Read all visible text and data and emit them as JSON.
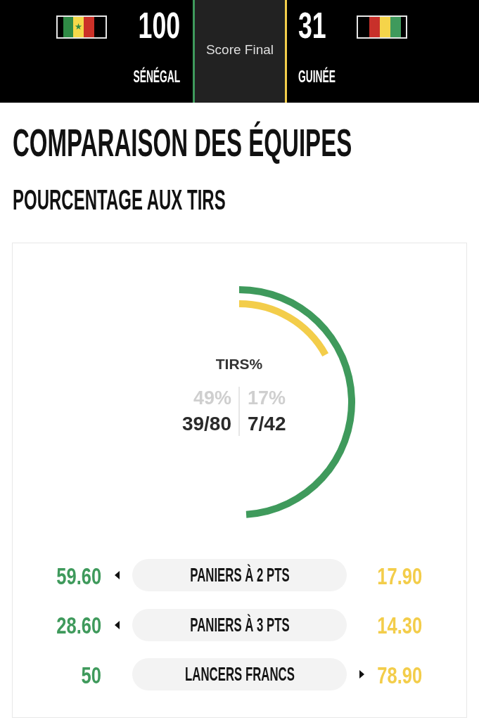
{
  "chart_data": [
    {
      "type": "other",
      "title": "Score Final",
      "categories": [
        "SÉNÉGAL",
        "GUINÉE"
      ],
      "values": [
        100,
        31
      ],
      "data_labels": true
    },
    {
      "type": "other",
      "title": "COMPARAISON DES ÉQUIPES",
      "subtitle": "POURCENTAGE AUX TIRS",
      "categories": [
        "TIRS%"
      ],
      "series": [
        {
          "color": "#3f9a5c",
          "values": [
            49
          ],
          "value_labels": [
            "49%"
          ]
        },
        {
          "color": "#f3cd4a",
          "values": [
            17
          ],
          "value_labels": [
            "17%"
          ]
        }
      ],
      "annotations": [
        "39/80",
        "7/42"
      ]
    },
    {
      "type": "other",
      "categories": [
        "PANIERS À 2 PTS",
        "PANIERS À 3 PTS",
        "LANCERS FRANCS"
      ],
      "series": [
        {
          "color": "#3f9a5c",
          "values": [
            59.6,
            28.6,
            50
          ],
          "value_labels": [
            "59.60",
            "28.60",
            "50"
          ]
        },
        {
          "color": "#f3cd4a",
          "values": [
            17.9,
            14.3,
            78.9
          ],
          "value_labels": [
            "17.90",
            "14.30",
            "78.90"
          ]
        }
      ]
    }
  ]
}
